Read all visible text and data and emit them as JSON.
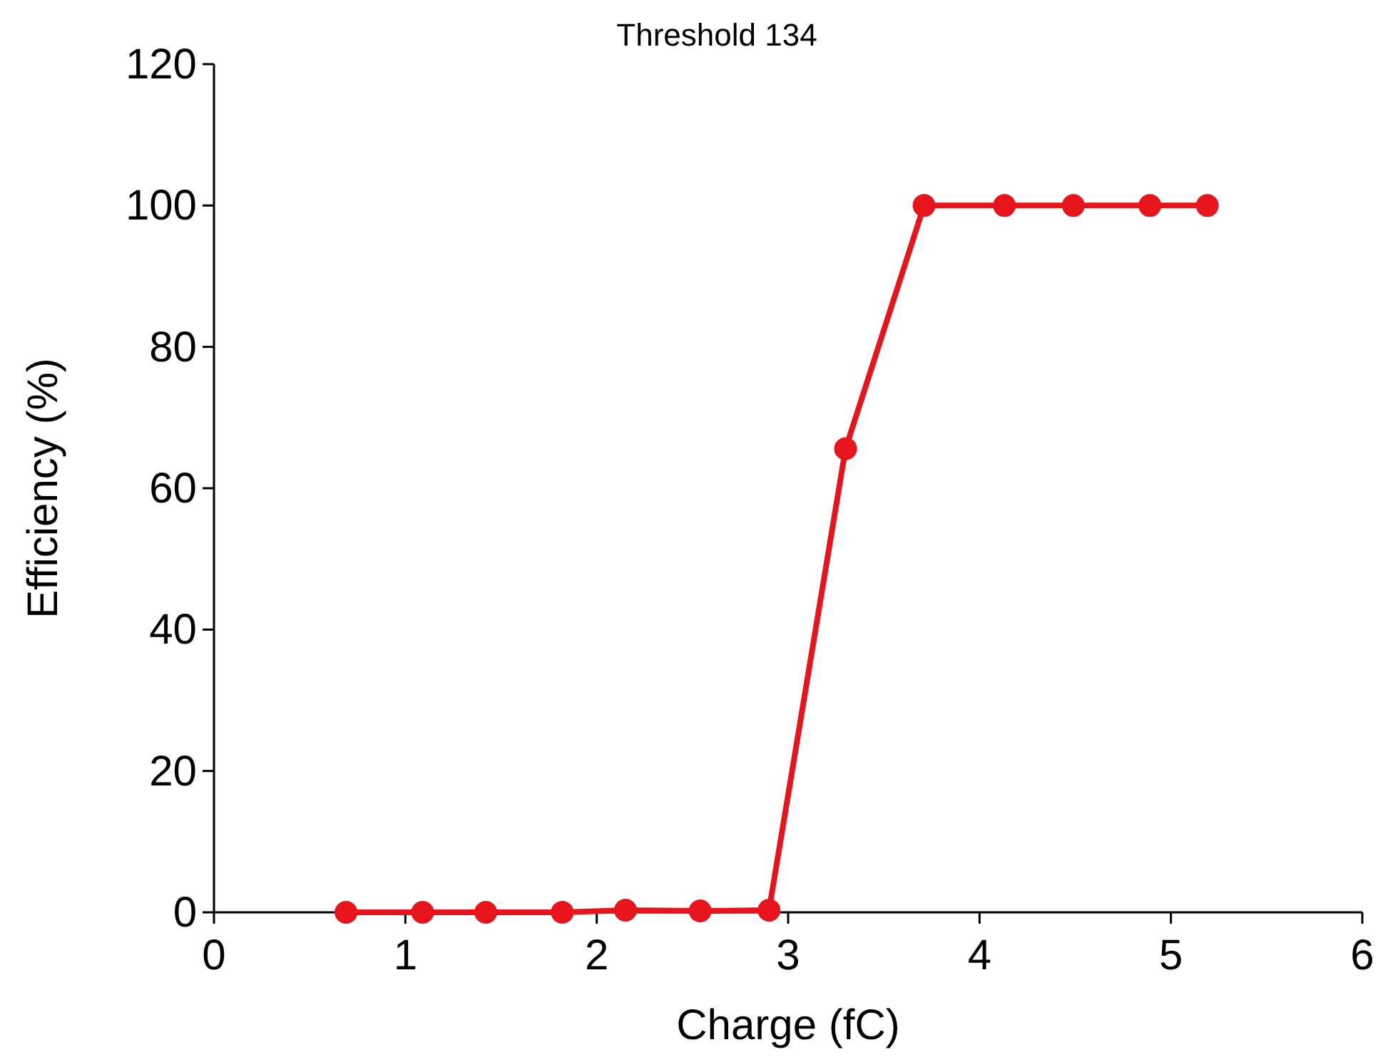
{
  "chart_data": {
    "type": "line",
    "title": "Threshold 134",
    "xlabel": "Charge (fC)",
    "ylabel": "Efficiency (%)",
    "x": [
      0.69,
      1.09,
      1.42,
      1.82,
      2.15,
      2.54,
      2.9,
      3.3,
      3.71,
      4.13,
      4.49,
      4.89,
      5.19
    ],
    "series": [
      {
        "color": "#e8141b",
        "values": [
          0,
          0,
          0,
          0,
          0.3,
          0.2,
          0.3,
          65.6,
          100,
          100,
          100,
          100,
          100
        ]
      }
    ],
    "xlim": [
      0,
      6
    ],
    "xticks": [
      0,
      1,
      2,
      3,
      4,
      5,
      6
    ],
    "ylim": [
      0,
      120
    ],
    "yticks": [
      0,
      20,
      40,
      60,
      80,
      100,
      120
    ],
    "marker": "circle",
    "line_style": "solid"
  }
}
